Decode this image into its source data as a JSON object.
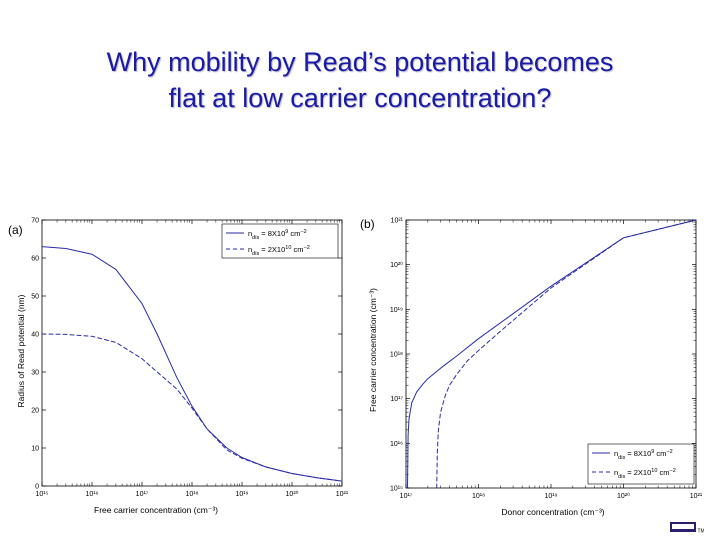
{
  "slide": {
    "title_line1": "Why mobility by Read’s potential becomes",
    "title_line2": "flat at low carrier concentration?",
    "title_color": "#1a1aa6",
    "logo_mark": "TM"
  },
  "chart_data": [
    {
      "panel_label": "(a)",
      "type": "line",
      "x_scale": "log",
      "xlim": [
        1000000000000000.0,
        1e+21
      ],
      "ylim": [
        0,
        70
      ],
      "xlabel": "Free carrier concentration (cm⁻³)",
      "ylabel": "Radius of Read potential (nm)",
      "x_ticks": [
        {
          "value": 1000000000000000.0,
          "label": "10¹⁵"
        },
        {
          "value": 1e+16,
          "label": "10¹⁶"
        },
        {
          "value": 1e+17,
          "label": "10¹⁷"
        },
        {
          "value": 1e+18,
          "label": "10¹⁸"
        },
        {
          "value": 1e+19,
          "label": "10¹⁹"
        },
        {
          "value": 1e+20,
          "label": "10²⁰"
        },
        {
          "value": 1e+21,
          "label": "10²¹"
        }
      ],
      "y_ticks": [
        {
          "value": 0,
          "label": "0"
        },
        {
          "value": 10,
          "label": "10"
        },
        {
          "value": 20,
          "label": "20"
        },
        {
          "value": 30,
          "label": "30"
        },
        {
          "value": 40,
          "label": "40"
        },
        {
          "value": 50,
          "label": "50"
        },
        {
          "value": 60,
          "label": "60"
        },
        {
          "value": 70,
          "label": "70"
        }
      ],
      "legend_position": "top-right",
      "series": [
        {
          "name": "n_dis = 8X10⁹ cm⁻²",
          "legend_base": "n",
          "legend_sub": "dis",
          "legend_mid": " = 8X10",
          "legend_sup": "9",
          "legend_unit": " cm",
          "legend_unit_sup": "−2",
          "style": "solid",
          "color": "#2a2aa8",
          "x": [
            1000000000000000.0,
            3000000000000000.0,
            1e+16,
            3e+16,
            1e+17,
            2e+17,
            5e+17,
            1e+18,
            2e+18,
            5e+18,
            1e+19,
            3e+19,
            1e+20,
            3e+20,
            1e+21
          ],
          "y": [
            63,
            62.5,
            61,
            57,
            48,
            40,
            28.5,
            21,
            15,
            10,
            7.5,
            5,
            3.3,
            2.2,
            1.3
          ]
        },
        {
          "name": "n_dis = 2X10¹⁰ cm⁻²",
          "legend_base": "n",
          "legend_sub": "dis",
          "legend_mid": " = 2X10",
          "legend_sup": "10",
          "legend_unit": " cm",
          "legend_unit_sup": "−2",
          "style": "dashed",
          "color": "#2a2aa8",
          "x": [
            1000000000000000.0,
            3000000000000000.0,
            1e+16,
            3e+16,
            1e+17,
            3e+17,
            5e+17,
            1e+18,
            2e+18,
            5e+18,
            1e+19,
            3e+19,
            1e+20,
            3e+20,
            1e+21
          ],
          "y": [
            40,
            39.9,
            39.4,
            37.8,
            33.5,
            28,
            25.5,
            20.5,
            15,
            9.5,
            7.3,
            5,
            3.3,
            2.2,
            1.3
          ]
        }
      ]
    },
    {
      "panel_label": "(b)",
      "type": "line",
      "x_scale": "log",
      "y_scale": "log",
      "xlim": [
        1e+17,
        1e+21
      ],
      "ylim": [
        1000000000000000.0,
        1e+21
      ],
      "xlabel": "Donor concentration (cm⁻³)",
      "ylabel": "Free carrier concentration (cm⁻³)",
      "x_ticks": [
        {
          "value": 1e+17,
          "label": "10¹⁷"
        },
        {
          "value": 1e+18,
          "label": "10¹⁸"
        },
        {
          "value": 1e+19,
          "label": "10¹⁹"
        },
        {
          "value": 1e+20,
          "label": "10²⁰"
        },
        {
          "value": 1e+21,
          "label": "10²¹"
        }
      ],
      "y_ticks": [
        {
          "value": 1000000000000000.0,
          "label": "10¹⁵"
        },
        {
          "value": 1e+16,
          "label": "10¹⁶"
        },
        {
          "value": 1e+17,
          "label": "10¹⁷"
        },
        {
          "value": 1e+18,
          "label": "10¹⁸"
        },
        {
          "value": 1e+19,
          "label": "10¹⁹"
        },
        {
          "value": 1e+20,
          "label": "10²⁰"
        },
        {
          "value": 1e+21,
          "label": "10²¹"
        }
      ],
      "legend_position": "bottom-right",
      "series": [
        {
          "name": "n_dis = 8X10⁹ cm⁻²",
          "legend_base": "n",
          "legend_sub": "dis",
          "legend_mid": " = 8X10",
          "legend_sup": "9",
          "legend_unit": " cm",
          "legend_unit_sup": "−2",
          "style": "solid",
          "color": "#2a2aa8",
          "x": [
            1.05e+17,
            1.07e+17,
            1.1e+17,
            1.2e+17,
            1.4e+17,
            1.7e+17,
            2e+17,
            3e+17,
            5e+17,
            1e+18,
            3e+18,
            1e+19,
            1e+20,
            1e+21
          ],
          "y": [
            1000000000000000.0,
            1.5e+16,
            3.5e+16,
            8e+16,
            1.4e+17,
            2.1e+17,
            2.8e+17,
            4.8e+17,
            9e+17,
            2.2e+18,
            8e+18,
            3.3e+19,
            4e+20,
            1e+21
          ]
        },
        {
          "name": "n_dis = 2X10¹⁰ cm⁻²",
          "legend_base": "n",
          "legend_sub": "dis",
          "legend_mid": " = 2X10",
          "legend_sup": "10",
          "legend_unit": " cm",
          "legend_unit_sup": "−2",
          "style": "dashed",
          "color": "#2a2aa8",
          "x": [
            2.65e+17,
            2.7e+17,
            2.8e+17,
            3e+17,
            3.5e+17,
            4e+17,
            5e+17,
            7e+17,
            1e+18,
            2e+18,
            5e+18,
            1e+19,
            1e+20,
            1e+21
          ],
          "y": [
            1000000000000000.0,
            6000000000000000.0,
            2e+16,
            5e+16,
            1.2e+17,
            2e+17,
            3.5e+17,
            7e+17,
            1.2e+18,
            3.2e+18,
            1.15e+19,
            3e+19,
            4e+20,
            1e+21
          ]
        }
      ]
    }
  ]
}
